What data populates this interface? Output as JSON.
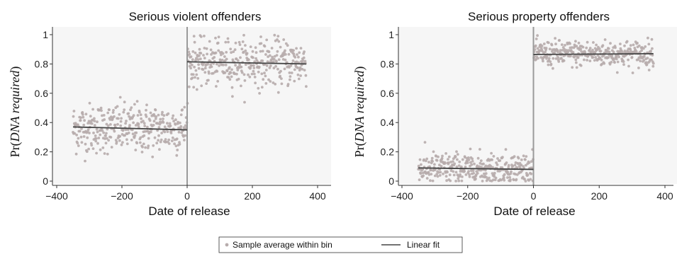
{
  "chart_data": [
    {
      "type": "scatter",
      "title": "Serious violent offenders",
      "xlabel": "Date of release",
      "ylabel_prefix": "Pr(",
      "ylabel_italic": "DNA required",
      "ylabel_suffix": ")",
      "xlim": [
        -400,
        410
      ],
      "ylim": [
        -0.02,
        1.05
      ],
      "xticks": [
        -400,
        -200,
        0,
        200,
        400
      ],
      "xtick_labels": [
        "−400",
        "−200",
        "0",
        "200",
        "400"
      ],
      "yticks": [
        0,
        0.2,
        0.4,
        0.6,
        0.8,
        1
      ],
      "ytick_labels": [
        "0",
        "0.2",
        "0.4",
        "0.6",
        "0.8",
        "1"
      ],
      "cutoff": 0,
      "scatter_pre": {
        "x_range": [
          -350,
          -1
        ],
        "mean": 0.36,
        "sd": 0.085
      },
      "scatter_post": {
        "x_range": [
          1,
          365
        ],
        "mean": 0.81,
        "sd": 0.08
      },
      "fit_pre": {
        "x": [
          -350,
          0
        ],
        "y": [
          0.37,
          0.35
        ]
      },
      "fit_post": {
        "x": [
          0,
          365
        ],
        "y": [
          0.815,
          0.8
        ]
      }
    },
    {
      "type": "scatter",
      "title": "Serious property offenders",
      "xlabel": "Date of release",
      "ylabel_prefix": "Pr(",
      "ylabel_italic": "DNA required",
      "ylabel_suffix": ")",
      "xlim": [
        -400,
        410
      ],
      "ylim": [
        -0.02,
        1.05
      ],
      "xticks": [
        -400,
        -200,
        0,
        200,
        400
      ],
      "xtick_labels": [
        "−400",
        "−200",
        "0",
        "200",
        "400"
      ],
      "yticks": [
        0,
        0.2,
        0.4,
        0.6,
        0.8,
        1
      ],
      "ytick_labels": [
        "0",
        "0.2",
        "0.4",
        "0.6",
        "0.8",
        "1"
      ],
      "cutoff": 0,
      "scatter_pre": {
        "x_range": [
          -350,
          -1
        ],
        "mean": 0.085,
        "sd": 0.055
      },
      "scatter_post": {
        "x_range": [
          1,
          365
        ],
        "mean": 0.87,
        "sd": 0.045
      },
      "fit_pre": {
        "x": [
          -350,
          0
        ],
        "y": [
          0.09,
          0.08
        ]
      },
      "fit_post": {
        "x": [
          0,
          365
        ],
        "y": [
          0.865,
          0.87
        ]
      }
    }
  ],
  "legend": {
    "scatter_label": "Sample average within bin",
    "line_label": "Linear fit"
  },
  "colors": {
    "points": "#b7acac",
    "fit": "#444444",
    "cutoff": "#9a9a9a",
    "axis": "#333333",
    "panel_bg": "#f6f6f6"
  }
}
